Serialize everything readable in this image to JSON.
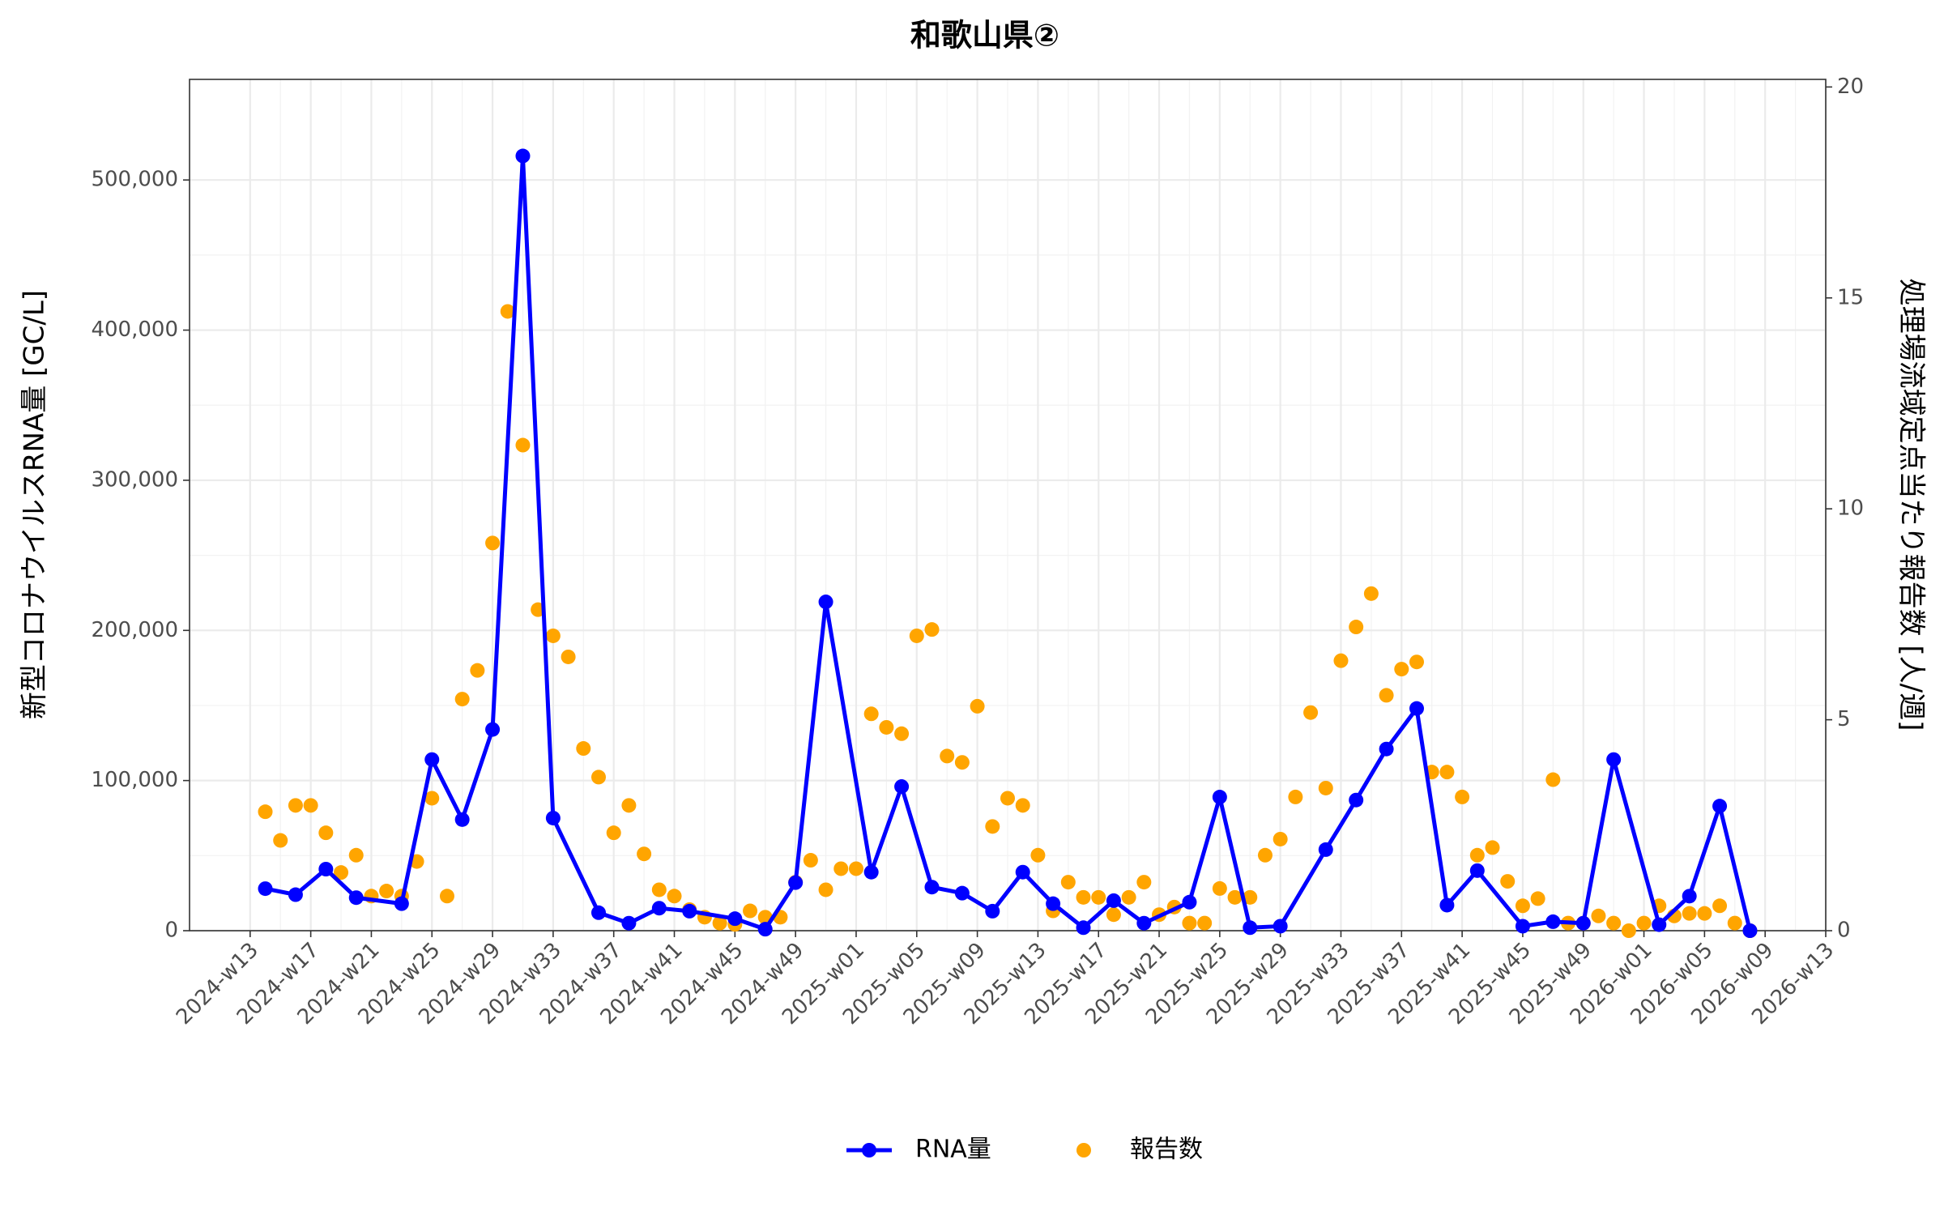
{
  "chart_data": {
    "type": "combo",
    "title": "和歌山県②",
    "y_label": "新型コロナウイルスRNA量 [GC/L]",
    "y2_label": "処理場流域定点当たり報告数 [人/週]",
    "xlim": [
      "2024-w09",
      "2026-w13"
    ],
    "xticks": [
      "2024-w13",
      "2024-w17",
      "2024-w21",
      "2024-w25",
      "2024-w29",
      "2024-w33",
      "2024-w37",
      "2024-w41",
      "2024-w45",
      "2024-w49",
      "2025-w01",
      "2025-w05",
      "2025-w09",
      "2025-w13",
      "2025-w17",
      "2025-w21",
      "2025-w25",
      "2025-w29",
      "2025-w33",
      "2025-w37",
      "2025-w41",
      "2025-w45",
      "2025-w49",
      "2026-w01",
      "2026-w05",
      "2026-w09",
      "2026-w13"
    ],
    "ylim": [
      0,
      567000
    ],
    "yticks": [
      0,
      {
        "value": 100000,
        "label": "100,000"
      },
      {
        "value": 200000,
        "label": "200,000"
      },
      {
        "value": 300000,
        "label": "300,000"
      },
      {
        "value": 400000,
        "label": "400,000"
      },
      {
        "value": 500000,
        "label": "500,000"
      }
    ],
    "y2lim": [
      0,
      20.18
    ],
    "y2ticks": [
      0,
      5,
      10,
      15,
      20
    ],
    "grid": true,
    "legend": "bottom",
    "series": [
      {
        "name": "RNA量",
        "type": "line",
        "color": "#0000FF",
        "x": [
          "2024-w14",
          "2024-w16",
          "2024-w18",
          "2024-w20",
          "2024-w23",
          "2024-w25",
          "2024-w27",
          "2024-w29",
          "2024-w31",
          "2024-w33",
          "2024-w36",
          "2024-w38",
          "2024-w40",
          "2024-w42",
          "2024-w45",
          "2024-w47",
          "2024-w49",
          "2024-w51",
          "2025-w02",
          "2025-w04",
          "2025-w06",
          "2025-w08",
          "2025-w10",
          "2025-w12",
          "2025-w14",
          "2025-w16",
          "2025-w18",
          "2025-w20",
          "2025-w23",
          "2025-w25",
          "2025-w27",
          "2025-w29",
          "2025-w32",
          "2025-w34",
          "2025-w36",
          "2025-w38",
          "2025-w40",
          "2025-w42",
          "2025-w45",
          "2025-w47",
          "2025-w49",
          "2025-w51",
          "2026-w02",
          "2026-w04",
          "2026-w06",
          "2026-w08"
        ],
        "values": [
          28000,
          24000,
          41000,
          22000,
          18000,
          114000,
          74000,
          134000,
          516000,
          75000,
          12000,
          5000,
          15000,
          13000,
          8000,
          1000,
          32000,
          219000,
          39000,
          96000,
          29000,
          25000,
          13000,
          39000,
          18000,
          2000,
          20000,
          5000,
          19000,
          89000,
          2000,
          3000,
          54000,
          87000,
          121000,
          148000,
          17000,
          40000,
          3000,
          6000,
          5000,
          114000,
          4000,
          23000,
          83000,
          0
        ]
      },
      {
        "name": "報告数",
        "type": "scatter",
        "color": "#FFA500",
        "axis": "y2",
        "x": [
          "2024-w14",
          "2024-w15",
          "2024-w16",
          "2024-w17",
          "2024-w18",
          "2024-w19",
          "2024-w20",
          "2024-w21",
          "2024-w22",
          "2024-w23",
          "2024-w24",
          "2024-w25",
          "2024-w26",
          "2024-w27",
          "2024-w28",
          "2024-w29",
          "2024-w30",
          "2024-w31",
          "2024-w32",
          "2024-w33",
          "2024-w34",
          "2024-w35",
          "2024-w36",
          "2024-w37",
          "2024-w38",
          "2024-w39",
          "2024-w40",
          "2024-w41",
          "2024-w42",
          "2024-w43",
          "2024-w44",
          "2024-w45",
          "2024-w46",
          "2024-w47",
          "2024-w48",
          "2024-w49",
          "2024-w50",
          "2024-w51",
          "2024-w52",
          "2025-w01",
          "2025-w02",
          "2025-w03",
          "2025-w04",
          "2025-w05",
          "2025-w06",
          "2025-w07",
          "2025-w08",
          "2025-w09",
          "2025-w10",
          "2025-w11",
          "2025-w12",
          "2025-w13",
          "2025-w14",
          "2025-w15",
          "2025-w16",
          "2025-w17",
          "2025-w18",
          "2025-w19",
          "2025-w20",
          "2025-w21",
          "2025-w22",
          "2025-w23",
          "2025-w24",
          "2025-w25",
          "2025-w26",
          "2025-w27",
          "2025-w28",
          "2025-w29",
          "2025-w30",
          "2025-w31",
          "2025-w32",
          "2025-w33",
          "2025-w34",
          "2025-w35",
          "2025-w36",
          "2025-w37",
          "2025-w38",
          "2025-w39",
          "2025-w40",
          "2025-w41",
          "2025-w42",
          "2025-w43",
          "2025-w44",
          "2025-w45",
          "2025-w46",
          "2025-w47",
          "2025-w48",
          "2025-w49",
          "2025-w50",
          "2025-w51",
          "2025-w52",
          "2026-w01",
          "2026-w02",
          "2026-w03",
          "2026-w04",
          "2026-w05",
          "2026-w06",
          "2026-w07",
          "2026-w08"
        ],
        "values": [
          2.82,
          2.14,
          2.97,
          2.97,
          2.32,
          1.38,
          1.79,
          0.82,
          0.94,
          0.82,
          1.64,
          3.14,
          0.82,
          5.49,
          6.17,
          9.19,
          14.68,
          11.51,
          7.61,
          6.99,
          6.49,
          4.32,
          3.64,
          2.32,
          2.97,
          1.82,
          0.97,
          0.82,
          0.5,
          0.32,
          0.18,
          0.15,
          0.47,
          0.32,
          0.32,
          1.15,
          1.67,
          0.97,
          1.47,
          1.47,
          5.14,
          4.82,
          4.67,
          6.99,
          7.14,
          4.14,
          3.99,
          5.32,
          2.47,
          3.14,
          2.97,
          1.79,
          0.47,
          1.15,
          0.79,
          0.79,
          0.38,
          0.79,
          1.15,
          0.38,
          0.56,
          0.18,
          0.18,
          1.0,
          0.79,
          0.79,
          1.79,
          2.17,
          3.17,
          5.17,
          3.38,
          6.4,
          7.2,
          7.99,
          5.58,
          6.2,
          6.37,
          3.76,
          3.76,
          3.17,
          1.79,
          1.97,
          1.17,
          0.59,
          0.76,
          3.58,
          0.18,
          0.18,
          0.35,
          0.18,
          0,
          0.18,
          0.59,
          0.35,
          0.41,
          0.41,
          0.59,
          0.18,
          0
        ]
      }
    ]
  }
}
